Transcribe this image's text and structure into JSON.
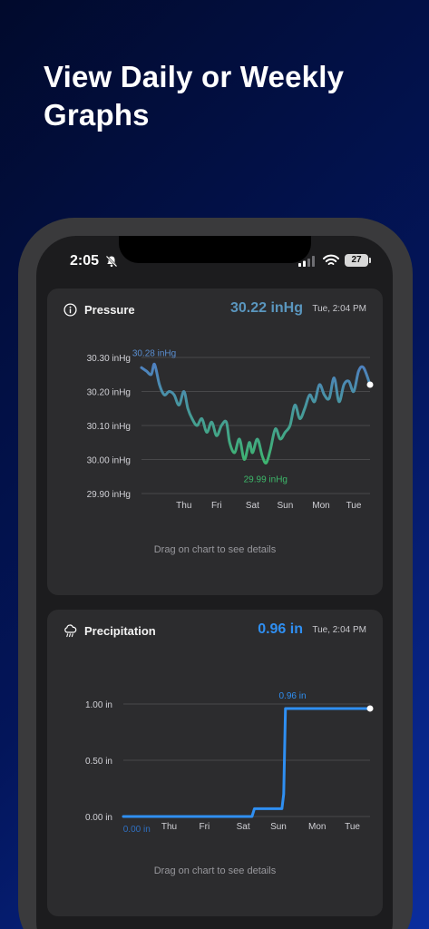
{
  "headline": {
    "line1": "View Daily or Weekly",
    "line2": "Graphs"
  },
  "status_bar": {
    "time": "2:05",
    "battery": "27"
  },
  "icons": {
    "bell": "bell-slash-icon",
    "signal": "cellular-signal-icon",
    "wifi": "wifi-icon",
    "pressure": "info-circle-icon",
    "precipitation": "cloud-rain-icon"
  },
  "colors": {
    "pressure_high": "#4f7fc4",
    "pressure_low": "#3db86a",
    "precipitation": "#2f8ff2"
  },
  "pressure_card": {
    "title": "Pressure",
    "value": "30.22 inHg",
    "time": "Tue, 2:04 PM",
    "hint": "Drag on chart to see details"
  },
  "precip_card": {
    "title": "Precipitation",
    "value": "0.96 in",
    "time": "Tue, 2:04 PM",
    "hint": "Drag on chart to see details"
  },
  "chart_data": [
    {
      "type": "line",
      "title": "Pressure",
      "ylabel_unit": "inHg",
      "y_ticks": [
        "30.30 inHg",
        "30.20 inHg",
        "30.10 inHg",
        "30.00 inHg",
        "29.90 inHg"
      ],
      "y_tick_values": [
        30.3,
        30.2,
        30.1,
        30.0,
        29.9
      ],
      "ylim": [
        29.9,
        30.3
      ],
      "x_ticks": [
        "Thu",
        "Fri",
        "Sat",
        "Sun",
        "Mon",
        "Tue"
      ],
      "x_tick_values": [
        1.3,
        2.3,
        3.4,
        4.4,
        5.5,
        6.5
      ],
      "xlim": [
        0,
        7
      ],
      "grid": true,
      "annotations": [
        {
          "label": "30.28 inHg",
          "x": 0.38,
          "y": 30.28
        },
        {
          "label": "29.99 inHg",
          "x": 3.8,
          "y": 29.99
        }
      ],
      "series": [
        {
          "x": [
            0,
            0.15,
            0.3,
            0.4,
            0.55,
            0.7,
            0.85,
            1.0,
            1.15,
            1.3,
            1.42,
            1.55,
            1.7,
            1.85,
            2.0,
            2.15,
            2.3,
            2.45,
            2.6,
            2.7,
            2.85,
            3.0,
            3.15,
            3.3,
            3.4,
            3.55,
            3.7,
            3.82,
            3.95,
            4.1,
            4.25,
            4.4,
            4.55,
            4.7,
            4.85,
            5.0,
            5.15,
            5.3,
            5.45,
            5.6,
            5.75,
            5.9,
            6.05,
            6.2,
            6.35,
            6.5,
            6.65,
            6.8,
            7.0
          ],
          "values": [
            30.27,
            30.26,
            30.25,
            30.28,
            30.22,
            30.19,
            30.2,
            30.19,
            30.16,
            30.2,
            30.15,
            30.12,
            30.1,
            30.12,
            30.08,
            30.11,
            30.07,
            30.1,
            30.11,
            30.05,
            30.02,
            30.06,
            30.0,
            30.05,
            30.02,
            30.06,
            30.01,
            29.99,
            30.03,
            30.09,
            30.06,
            30.08,
            30.1,
            30.16,
            30.12,
            30.15,
            30.19,
            30.17,
            30.22,
            30.19,
            30.18,
            30.24,
            30.17,
            30.22,
            30.23,
            30.2,
            30.26,
            30.27,
            30.22
          ]
        }
      ]
    },
    {
      "type": "line",
      "title": "Precipitation",
      "ylabel_unit": "in",
      "y_ticks": [
        "1.00 in",
        "0.50 in",
        "0.00 in"
      ],
      "y_tick_values": [
        1.0,
        0.5,
        0.0
      ],
      "ylim": [
        0.0,
        1.0
      ],
      "x_ticks": [
        "Thu",
        "Fri",
        "Sat",
        "Sun",
        "Mon",
        "Tue"
      ],
      "x_tick_values": [
        1.3,
        2.3,
        3.4,
        4.4,
        5.5,
        6.5
      ],
      "xlim": [
        0,
        7
      ],
      "grid": true,
      "annotations": [
        {
          "label": "0.96 in",
          "x": 4.8,
          "y": 0.96
        },
        {
          "label": "0.00 in",
          "x": 0.38,
          "y": 0.0
        }
      ],
      "series": [
        {
          "x": [
            0,
            3.65,
            3.72,
            4.5,
            4.55,
            4.6,
            7.0
          ],
          "values": [
            0.0,
            0.0,
            0.07,
            0.07,
            0.2,
            0.96,
            0.96
          ]
        }
      ]
    }
  ]
}
